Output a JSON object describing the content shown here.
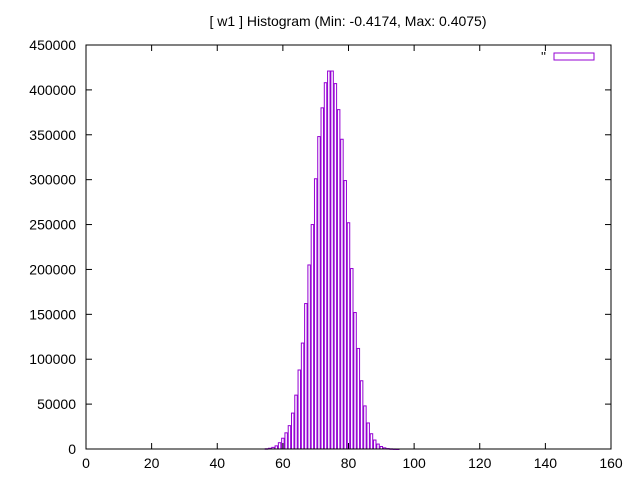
{
  "chart_data": {
    "type": "bar",
    "title": "[ w1 ] Histogram (Min: -0.4174, Max: 0.4075)",
    "xlabel": "",
    "ylabel": "",
    "xlim": [
      0,
      160
    ],
    "ylim": [
      0,
      450000
    ],
    "x_ticks": [
      "0",
      "20",
      "40",
      "60",
      "80",
      "100",
      "120",
      "140",
      "160"
    ],
    "y_ticks": [
      "0",
      "50000",
      "100000",
      "150000",
      "200000",
      "250000",
      "300000",
      "350000",
      "400000",
      "450000"
    ],
    "grid": false,
    "legend_position": "top-right",
    "series": [
      {
        "name": "''",
        "color": "#9400d3",
        "x": [
          55,
          56,
          57,
          58,
          59,
          60,
          61,
          62,
          63,
          64,
          65,
          66,
          67,
          68,
          69,
          70,
          71,
          72,
          73,
          74,
          75,
          76,
          77,
          78,
          79,
          80,
          81,
          82,
          83,
          84,
          85,
          86,
          87,
          88,
          89,
          90,
          91,
          92,
          93,
          94,
          95
        ],
        "values": [
          300,
          800,
          1800,
          3500,
          7000,
          12000,
          18000,
          26000,
          40000,
          60000,
          88000,
          118000,
          162000,
          205000,
          250000,
          301000,
          348000,
          380000,
          408000,
          421000,
          421000,
          407000,
          378000,
          345000,
          299000,
          252000,
          201000,
          152000,
          112000,
          76000,
          48000,
          29000,
          17000,
          10000,
          5500,
          2800,
          1300,
          500,
          200,
          50,
          10
        ]
      }
    ]
  }
}
